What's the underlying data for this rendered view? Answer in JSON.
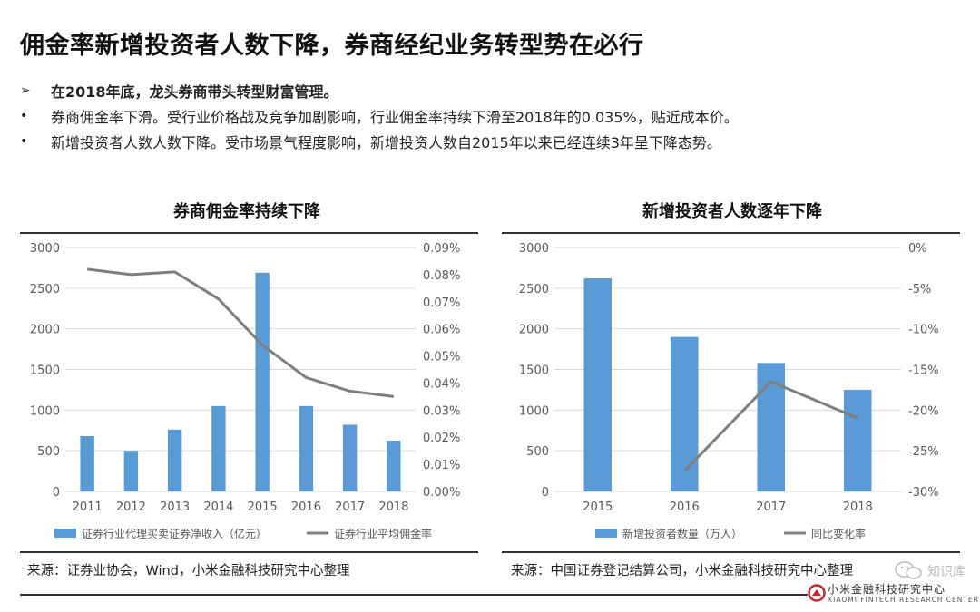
{
  "page": {
    "title": "佣金率新增投资者人数下降，券商经纪业务转型势在必行",
    "bullets": [
      {
        "marker": "➢",
        "text": "在2018年底，龙头券商带头转型财富管理。",
        "bold": true
      },
      {
        "marker": "•",
        "text": "券商佣金率下滑。受行业价格战及竞争加剧影响，行业佣金率持续下滑至2018年的0.035%，贴近成本价。",
        "bold": false
      },
      {
        "marker": "•",
        "text": "新增投资者人数人数下降。受市场景气程度影响，新增投资人数自2015年以来已经连续3年呈下降态势。",
        "bold": false
      }
    ],
    "sources": {
      "left": "来源：证券业协会，Wind，小米金融科技研究中心整理",
      "right": "来源：中国证券登记结算公司，小米金融科技研究中心整理"
    },
    "watermark": "知识库",
    "logo": {
      "name": "小米金融科技研究中心",
      "sub": "XIAOMI FINTECH RESEARCH CENTER"
    }
  },
  "colors": {
    "bar": "#5b9bd5",
    "line": "#7f7f7f",
    "grid": "#d9d9d9",
    "axis_text": "#595959"
  },
  "chart_data": [
    {
      "type": "bar+line",
      "title": "券商佣金率持续下降",
      "categories": [
        "2011",
        "2012",
        "2013",
        "2014",
        "2015",
        "2016",
        "2017",
        "2018"
      ],
      "series": [
        {
          "name": "证券行业代理买卖证券净收入（亿元）",
          "type": "bar",
          "axis": "left",
          "values": [
            680,
            500,
            760,
            1050,
            2690,
            1050,
            820,
            625
          ]
        },
        {
          "name": "证券行业平均佣金率",
          "type": "line",
          "axis": "right",
          "values": [
            0.082,
            0.08,
            0.081,
            0.071,
            0.054,
            0.042,
            0.037,
            0.035
          ]
        }
      ],
      "y_left": {
        "min": 0,
        "max": 3000,
        "ticks": [
          "0",
          "500",
          "1000",
          "1500",
          "2000",
          "2500",
          "3000"
        ]
      },
      "y_right": {
        "min": 0,
        "max": 0.09,
        "ticks": [
          "0.00%",
          "0.01%",
          "0.02%",
          "0.03%",
          "0.04%",
          "0.05%",
          "0.06%",
          "0.07%",
          "0.08%",
          "0.09%"
        ]
      },
      "legend_position": "bottom"
    },
    {
      "type": "bar+line",
      "title": "新增投资者人数逐年下降",
      "categories": [
        "2015",
        "2016",
        "2017",
        "2018"
      ],
      "series": [
        {
          "name": "新增投资者数量（万人）",
          "type": "bar",
          "axis": "left",
          "values": [
            2620,
            1900,
            1580,
            1250
          ]
        },
        {
          "name": "同比变化率",
          "type": "line",
          "axis": "right",
          "values": [
            null,
            -27.5,
            -16.5,
            -21
          ]
        }
      ],
      "y_left": {
        "min": 0,
        "max": 3000,
        "ticks": [
          "0",
          "500",
          "1000",
          "1500",
          "2000",
          "2500",
          "3000"
        ]
      },
      "y_right": {
        "min": -30,
        "max": 0,
        "ticks": [
          "-30%",
          "-25%",
          "-20%",
          "-15%",
          "-10%",
          "-5%",
          "0%"
        ]
      },
      "legend_position": "bottom"
    }
  ]
}
